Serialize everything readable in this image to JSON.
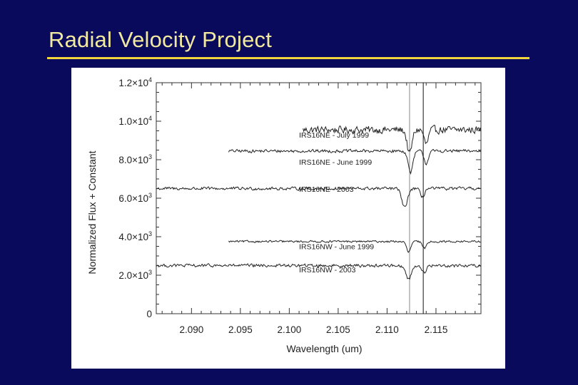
{
  "slide": {
    "title": "Radial Velocity Project",
    "background_color": "#0a0a5c",
    "title_color": "#f2e9a0",
    "rule_color": "#f2d53a"
  },
  "chart_data": {
    "type": "line",
    "title": "",
    "xlabel": "Wavelength (um)",
    "ylabel": "Normalized Flux + Constant",
    "xlim": [
      2.0864,
      2.1196
    ],
    "ylim": [
      0,
      12000
    ],
    "x_ticks": [
      2.09,
      2.095,
      2.1,
      2.105,
      2.11,
      2.115
    ],
    "x_tick_labels": [
      "2.090",
      "2.095",
      "2.100",
      "2.105",
      "2.110",
      "2.115"
    ],
    "y_ticks": [
      {
        "value": 12000,
        "mantissa": "1.2",
        "exp": "4"
      },
      {
        "value": 10000,
        "mantissa": "1.0",
        "exp": "4"
      },
      {
        "value": 8000,
        "mantissa": "8.0",
        "exp": "3"
      },
      {
        "value": 6000,
        "mantissa": "6.0",
        "exp": "3"
      },
      {
        "value": 4000,
        "mantissa": "4.0",
        "exp": "3"
      },
      {
        "value": 2000,
        "mantissa": "2.0",
        "exp": "3"
      },
      {
        "value": 0,
        "mantissa": "0",
        "exp": ""
      }
    ],
    "times_symbol": "×10",
    "reference_lines": [
      {
        "x": 2.1123,
        "style": "gray"
      },
      {
        "x": 2.1137,
        "style": "black"
      }
    ],
    "series": [
      {
        "name": "IRS16NE - July 1999",
        "x_start": 2.1014,
        "x_end": 2.1196,
        "baseline": 9550,
        "noise": 260,
        "absorption": [
          {
            "center": 2.1123,
            "depth": 1250,
            "width": 0.00035
          },
          {
            "center": 2.114,
            "depth": 750,
            "width": 0.0003
          }
        ]
      },
      {
        "name": "IRS16NE - June 1999",
        "x_start": 2.0938,
        "x_end": 2.1196,
        "baseline": 8450,
        "noise": 110,
        "absorption": [
          {
            "center": 2.1124,
            "depth": 1100,
            "width": 0.00035
          },
          {
            "center": 2.114,
            "depth": 650,
            "width": 0.0003
          }
        ]
      },
      {
        "name": "IRS16NE - 2003",
        "x_start": 2.0864,
        "x_end": 2.1196,
        "baseline": 6500,
        "noise": 110,
        "absorption": [
          {
            "center": 2.1118,
            "depth": 1000,
            "width": 0.0004
          },
          {
            "center": 2.1136,
            "depth": 450,
            "width": 0.0003
          }
        ]
      },
      {
        "name": "IRS16NW - June 1999",
        "x_start": 2.0938,
        "x_end": 2.1196,
        "baseline": 3750,
        "noise": 70,
        "absorption": [
          {
            "center": 2.1122,
            "depth": 550,
            "width": 0.0003
          },
          {
            "center": 2.1138,
            "depth": 350,
            "width": 0.0003
          }
        ]
      },
      {
        "name": "IRS16NW - 2003",
        "x_start": 2.0864,
        "x_end": 2.1196,
        "baseline": 2500,
        "noise": 110,
        "absorption": [
          {
            "center": 2.1122,
            "depth": 700,
            "width": 0.0004
          },
          {
            "center": 2.1138,
            "depth": 400,
            "width": 0.0003
          }
        ]
      }
    ],
    "series_labels": [
      {
        "text": "IRS16NE - July 1999",
        "anchor_x": 2.101,
        "anchor_y": 9150
      },
      {
        "text": "IRS16NE - June 1999",
        "anchor_x": 2.101,
        "anchor_y": 7750
      },
      {
        "text": "IRS16NE - 2003",
        "anchor_x": 2.101,
        "anchor_y": 6330
      },
      {
        "text": "IRS16NW - June 1999",
        "anchor_x": 2.101,
        "anchor_y": 3350
      },
      {
        "text": "IRS16NW - 2003",
        "anchor_x": 2.101,
        "anchor_y": 2150
      }
    ]
  }
}
